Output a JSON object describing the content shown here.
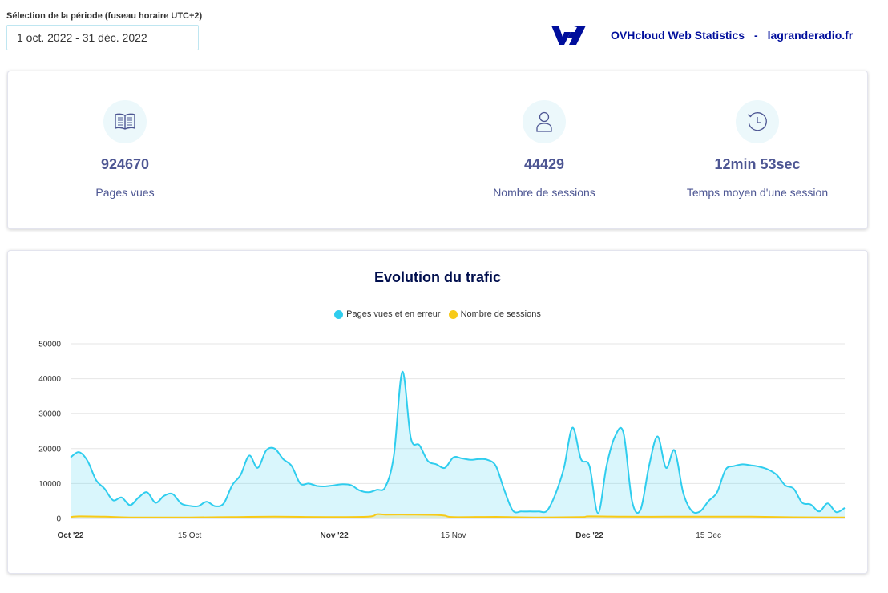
{
  "period": {
    "label": "Sélection de la période (fuseau horaire UTC+2)",
    "value": "1 oct. 2022 - 31 déc. 2022"
  },
  "header": {
    "title": "OVHcloud Web Statistics",
    "separator": "-",
    "site": "lagranderadio.fr"
  },
  "stats": [
    {
      "icon": "book-icon",
      "value": "924670",
      "label": "Pages vues"
    },
    {
      "icon": "user-icon",
      "value": "44429",
      "label": "Nombre de sessions"
    },
    {
      "icon": "clock-history-icon",
      "value": "12min 53sec",
      "label": "Temps moyen d'une session"
    }
  ],
  "colors": {
    "pages": "#2fcdee",
    "sessions": "#f7ca18",
    "brand": "#000e9c",
    "text": "#4d5693"
  },
  "chart_data": {
    "type": "area",
    "title": "Evolution du trafic",
    "legend_position": "top-center",
    "grid": true,
    "ylim": [
      0,
      50000
    ],
    "yticks": [
      "0",
      "10000",
      "20000",
      "30000",
      "40000",
      "50000"
    ],
    "xlim": [
      "2022-10-01",
      "2022-12-31"
    ],
    "xticks": [
      {
        "date": "2022-10-01",
        "label": "Oct '22",
        "bold": true
      },
      {
        "date": "2022-10-15",
        "label": "15 Oct",
        "bold": false
      },
      {
        "date": "2022-11-01",
        "label": "Nov '22",
        "bold": true
      },
      {
        "date": "2022-11-15",
        "label": "15 Nov",
        "bold": false
      },
      {
        "date": "2022-12-01",
        "label": "Dec '22",
        "bold": true
      },
      {
        "date": "2022-12-15",
        "label": "15 Dec",
        "bold": false
      }
    ],
    "series": [
      {
        "name": "Pages vues et en erreur",
        "points": [
          [
            "2022-10-01",
            17500
          ],
          [
            "2022-10-02",
            19000
          ],
          [
            "2022-10-03",
            16500
          ],
          [
            "2022-10-04",
            11000
          ],
          [
            "2022-10-05",
            8500
          ],
          [
            "2022-10-06",
            5200
          ],
          [
            "2022-10-07",
            6000
          ],
          [
            "2022-10-08",
            3800
          ],
          [
            "2022-10-09",
            6000
          ],
          [
            "2022-10-10",
            7500
          ],
          [
            "2022-10-11",
            4500
          ],
          [
            "2022-10-12",
            6500
          ],
          [
            "2022-10-13",
            7000
          ],
          [
            "2022-10-14",
            4300
          ],
          [
            "2022-10-15",
            3600
          ],
          [
            "2022-10-16",
            3500
          ],
          [
            "2022-10-17",
            4800
          ],
          [
            "2022-10-18",
            3500
          ],
          [
            "2022-10-19",
            4300
          ],
          [
            "2022-10-20",
            9500
          ],
          [
            "2022-10-21",
            12500
          ],
          [
            "2022-10-22",
            18000
          ],
          [
            "2022-10-23",
            14500
          ],
          [
            "2022-10-24",
            19500
          ],
          [
            "2022-10-25",
            20000
          ],
          [
            "2022-10-26",
            17000
          ],
          [
            "2022-10-27",
            15000
          ],
          [
            "2022-10-28",
            10000
          ],
          [
            "2022-10-29",
            10000
          ],
          [
            "2022-10-30",
            9300
          ],
          [
            "2022-10-31",
            9200
          ],
          [
            "2022-11-01",
            9500
          ],
          [
            "2022-11-02",
            9800
          ],
          [
            "2022-11-03",
            9500
          ],
          [
            "2022-11-04",
            8000
          ],
          [
            "2022-11-05",
            7500
          ],
          [
            "2022-11-06",
            8200
          ],
          [
            "2022-11-07",
            9000
          ],
          [
            "2022-11-08",
            18000
          ],
          [
            "2022-11-09",
            42000
          ],
          [
            "2022-11-10",
            23000
          ],
          [
            "2022-11-11",
            21000
          ],
          [
            "2022-11-12",
            16500
          ],
          [
            "2022-11-13",
            15500
          ],
          [
            "2022-11-14",
            14500
          ],
          [
            "2022-11-15",
            17500
          ],
          [
            "2022-11-16",
            17200
          ],
          [
            "2022-11-17",
            16800
          ],
          [
            "2022-11-18",
            17000
          ],
          [
            "2022-11-19",
            16800
          ],
          [
            "2022-11-20",
            15000
          ],
          [
            "2022-11-21",
            8000
          ],
          [
            "2022-11-22",
            2200
          ],
          [
            "2022-11-23",
            2000
          ],
          [
            "2022-11-24",
            2000
          ],
          [
            "2022-11-25",
            2000
          ],
          [
            "2022-11-26",
            2200
          ],
          [
            "2022-11-27",
            7000
          ],
          [
            "2022-11-28",
            14500
          ],
          [
            "2022-11-29",
            26000
          ],
          [
            "2022-11-30",
            17000
          ],
          [
            "2022-12-01",
            15000
          ],
          [
            "2022-12-02",
            1500
          ],
          [
            "2022-12-03",
            15000
          ],
          [
            "2022-12-04",
            23500
          ],
          [
            "2022-12-05",
            24500
          ],
          [
            "2022-12-06",
            5000
          ],
          [
            "2022-12-07",
            2500
          ],
          [
            "2022-12-08",
            15000
          ],
          [
            "2022-12-09",
            23500
          ],
          [
            "2022-12-10",
            14500
          ],
          [
            "2022-12-11",
            19500
          ],
          [
            "2022-12-12",
            7500
          ],
          [
            "2022-12-13",
            2200
          ],
          [
            "2022-12-14",
            2000
          ],
          [
            "2022-12-15",
            5000
          ],
          [
            "2022-12-16",
            7500
          ],
          [
            "2022-12-17",
            14000
          ],
          [
            "2022-12-18",
            15000
          ],
          [
            "2022-12-19",
            15500
          ],
          [
            "2022-12-20",
            15200
          ],
          [
            "2022-12-21",
            14800
          ],
          [
            "2022-12-22",
            14000
          ],
          [
            "2022-12-23",
            12500
          ],
          [
            "2022-12-24",
            9500
          ],
          [
            "2022-12-25",
            8500
          ],
          [
            "2022-12-26",
            4500
          ],
          [
            "2022-12-27",
            4000
          ],
          [
            "2022-12-28",
            2000
          ],
          [
            "2022-12-29",
            4300
          ],
          [
            "2022-12-30",
            1800
          ],
          [
            "2022-12-31",
            3000
          ]
        ]
      },
      {
        "name": "Nombre de sessions",
        "points": [
          [
            "2022-10-01",
            400
          ],
          [
            "2022-10-02",
            600
          ],
          [
            "2022-10-05",
            500
          ],
          [
            "2022-10-08",
            300
          ],
          [
            "2022-10-15",
            300
          ],
          [
            "2022-10-20",
            400
          ],
          [
            "2022-10-25",
            500
          ],
          [
            "2022-10-31",
            400
          ],
          [
            "2022-11-05",
            500
          ],
          [
            "2022-11-06",
            1200
          ],
          [
            "2022-11-07",
            1100
          ],
          [
            "2022-11-10",
            1100
          ],
          [
            "2022-11-13",
            1000
          ],
          [
            "2022-11-14",
            800
          ],
          [
            "2022-11-15",
            400
          ],
          [
            "2022-11-20",
            450
          ],
          [
            "2022-11-25",
            300
          ],
          [
            "2022-11-30",
            400
          ],
          [
            "2022-12-01",
            600
          ],
          [
            "2022-12-05",
            500
          ],
          [
            "2022-12-10",
            500
          ],
          [
            "2022-12-15",
            500
          ],
          [
            "2022-12-20",
            500
          ],
          [
            "2022-12-25",
            350
          ],
          [
            "2022-12-31",
            300
          ]
        ]
      }
    ]
  }
}
